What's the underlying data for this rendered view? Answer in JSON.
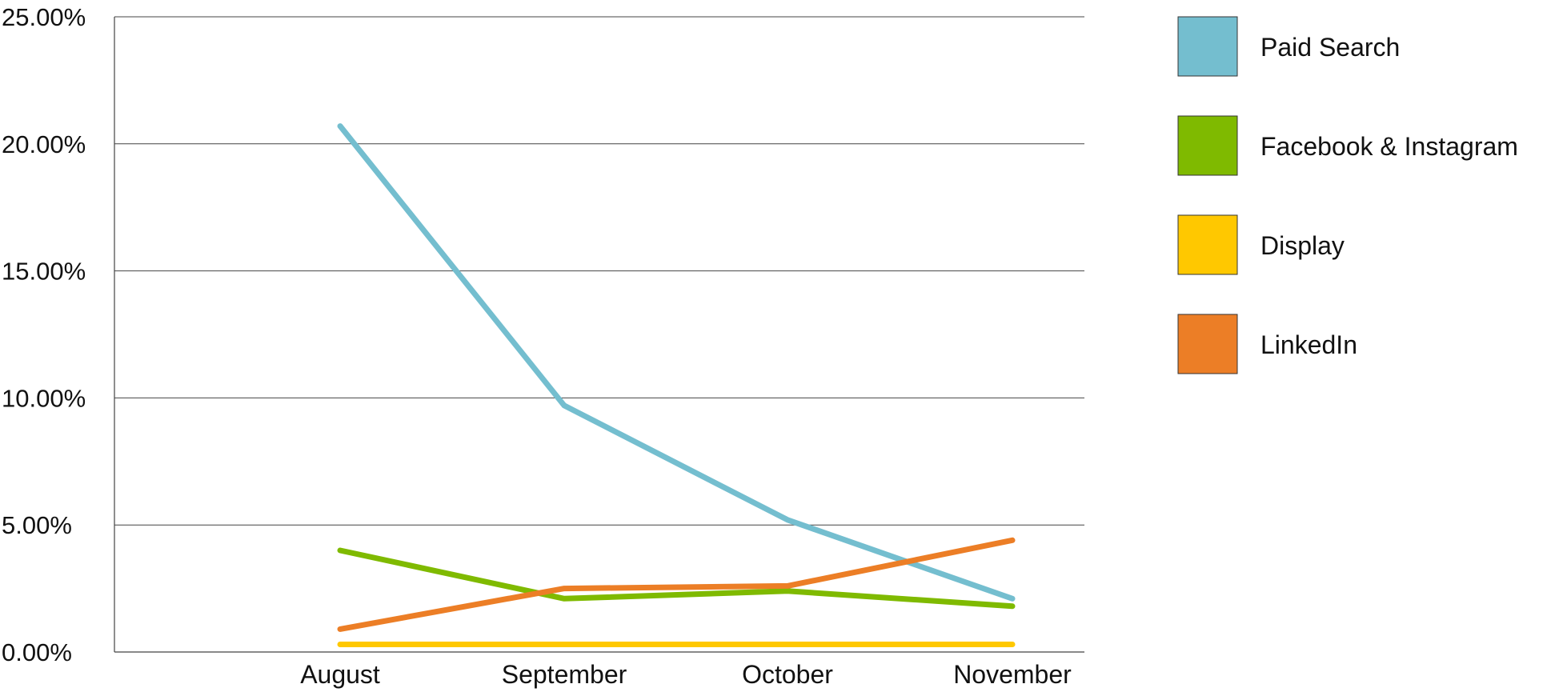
{
  "chart_data": {
    "type": "line",
    "title": "",
    "xlabel": "",
    "ylabel": "",
    "categories": [
      "August",
      "September",
      "October",
      "November"
    ],
    "ylim": [
      0,
      25
    ],
    "y_ticks": [
      0,
      5,
      10,
      15,
      20,
      25
    ],
    "y_tick_labels": [
      "0.00%",
      "5.00%",
      "10.00%",
      "15.00%",
      "20.00%",
      "25.00%"
    ],
    "grid": true,
    "legend_position": "right",
    "series": [
      {
        "name": "Paid Search",
        "color": "#74BECF",
        "values": [
          20.7,
          9.7,
          5.2,
          2.1
        ]
      },
      {
        "name": "Facebook & Instagram",
        "color": "#7FBA00",
        "values": [
          4.0,
          2.1,
          2.4,
          1.8
        ]
      },
      {
        "name": "Display",
        "color": "#FFC800",
        "values": [
          0.3,
          0.3,
          0.3,
          0.3
        ]
      },
      {
        "name": "LinkedIn",
        "color": "#EC7E26",
        "values": [
          0.9,
          2.5,
          2.6,
          4.4
        ]
      }
    ]
  }
}
